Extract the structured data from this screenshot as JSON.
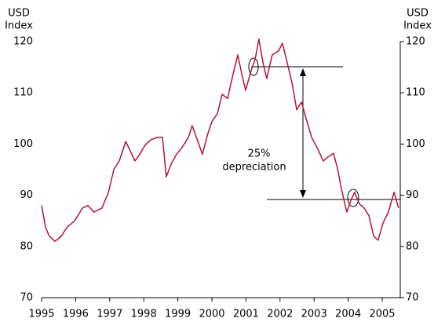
{
  "chart_data": {
    "type": "line",
    "y_label": [
      "USD",
      "Index"
    ],
    "y2_label": [
      "USD",
      "Index"
    ],
    "annotations": [
      "25%",
      "depreciation"
    ],
    "series": [
      {
        "name": "USD Index",
        "color": "#b5123a",
        "x": [
          1995.0,
          1995.12,
          1995.23,
          1995.39,
          1995.58,
          1995.74,
          1995.97,
          1996.2,
          1996.36,
          1996.54,
          1996.77,
          1996.96,
          1997.12,
          1997.28,
          1997.47,
          1997.58,
          1997.74,
          1997.88,
          1998.04,
          1998.2,
          1998.39,
          1998.55,
          1998.66,
          1998.8,
          1998.96,
          1999.12,
          1999.31,
          1999.42,
          1999.59,
          1999.72,
          1999.88,
          2000.0,
          2000.16,
          2000.3,
          2000.46,
          2000.62,
          2000.76,
          2000.88,
          2000.99,
          2001.15,
          2001.27,
          2001.38,
          2001.5,
          2001.61,
          2001.77,
          2001.96,
          2002.07,
          2002.21,
          2002.35,
          2002.49,
          2002.63,
          2002.76,
          2002.93,
          2003.11,
          2003.27,
          2003.41,
          2003.57,
          2003.69,
          2003.8,
          2003.96,
          2004.08,
          2004.19,
          2004.33,
          2004.47,
          2004.61,
          2004.75,
          2004.88,
          2005.02,
          2005.18,
          2005.35,
          2005.48
        ],
        "values": [
          88,
          83.6,
          82,
          81,
          82,
          83.7,
          85,
          87.5,
          88,
          86.7,
          87.5,
          90.5,
          95,
          96.7,
          100.5,
          99,
          96.7,
          98,
          99.8,
          100.8,
          101.3,
          101.3,
          93.6,
          96,
          98,
          99.3,
          101.3,
          103.6,
          100.5,
          98,
          102,
          104.4,
          105.9,
          109.7,
          108.9,
          113.6,
          117.4,
          113.6,
          110.5,
          114.3,
          116.6,
          120.5,
          115.9,
          112.8,
          117.4,
          118.2,
          119.7,
          115.9,
          112,
          106.7,
          108.2,
          105.1,
          101.3,
          99,
          96.7,
          97.5,
          98.2,
          95.2,
          91.3,
          86.7,
          89,
          90.6,
          88.3,
          87.5,
          86,
          82,
          81.2,
          84.5,
          86.7,
          90.6,
          87.5
        ]
      }
    ],
    "xlim": [
      1995,
      2005.53
    ],
    "xticks": [
      1995,
      1996,
      1997,
      1998,
      1999,
      2000,
      2001,
      2002,
      2003,
      2004,
      2005
    ],
    "ylim": [
      70,
      120
    ],
    "yticks": [
      70,
      80,
      90,
      100,
      110,
      120
    ],
    "y2lim": [
      70,
      120
    ],
    "y2ticks": [
      70,
      80,
      90,
      100,
      110,
      120
    ]
  }
}
